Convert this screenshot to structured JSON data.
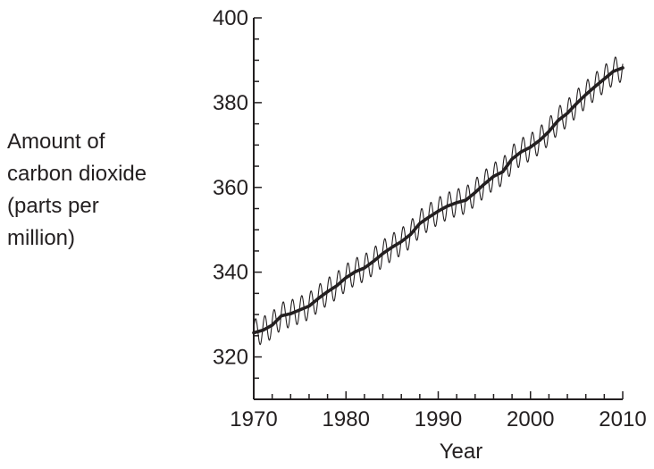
{
  "chart_data": {
    "type": "line",
    "title": "",
    "xlabel": "Year",
    "ylabel_lines": [
      "Amount of",
      "carbon dioxide",
      "(parts per",
      "million)"
    ],
    "xlim": [
      1970,
      2010
    ],
    "ylim": [
      310,
      400
    ],
    "x_ticks": [
      1970,
      1980,
      1990,
      2000,
      2010
    ],
    "x_tick_labels": [
      "1970",
      "1980",
      "1990",
      "2000",
      "2010"
    ],
    "y_ticks": [
      320,
      340,
      360,
      380,
      400
    ],
    "y_tick_labels": [
      "320",
      "340",
      "360",
      "380",
      "400"
    ],
    "grid": false,
    "colors": {
      "axis": "#231f20",
      "trend": "#231f20",
      "seasonal": "#231f20"
    },
    "series": [
      {
        "x": [
          1970,
          1971,
          1972,
          1973,
          1974,
          1975,
          1976,
          1977,
          1978,
          1979,
          1980,
          1981,
          1982,
          1983,
          1984,
          1985,
          1986,
          1987,
          1988,
          1989,
          1990,
          1991,
          1992,
          1993,
          1994,
          1995,
          1996,
          1997,
          1998,
          1999,
          2000,
          2001,
          2002,
          2003,
          2004,
          2005,
          2006,
          2007,
          2008,
          2009,
          2010
        ],
        "values": [
          325.7,
          326.3,
          327.5,
          329.7,
          330.2,
          331.1,
          332.0,
          333.8,
          335.4,
          336.8,
          338.7,
          340.1,
          341.0,
          342.6,
          344.4,
          345.9,
          347.2,
          348.9,
          351.5,
          353.0,
          354.4,
          355.6,
          356.4,
          357.0,
          358.8,
          360.8,
          362.6,
          363.7,
          366.7,
          368.4,
          369.5,
          371.1,
          373.2,
          375.8,
          377.5,
          379.8,
          381.9,
          383.8,
          385.6,
          387.4,
          388.2
        ]
      }
    ],
    "seasonal_amplitude": 3.2
  }
}
